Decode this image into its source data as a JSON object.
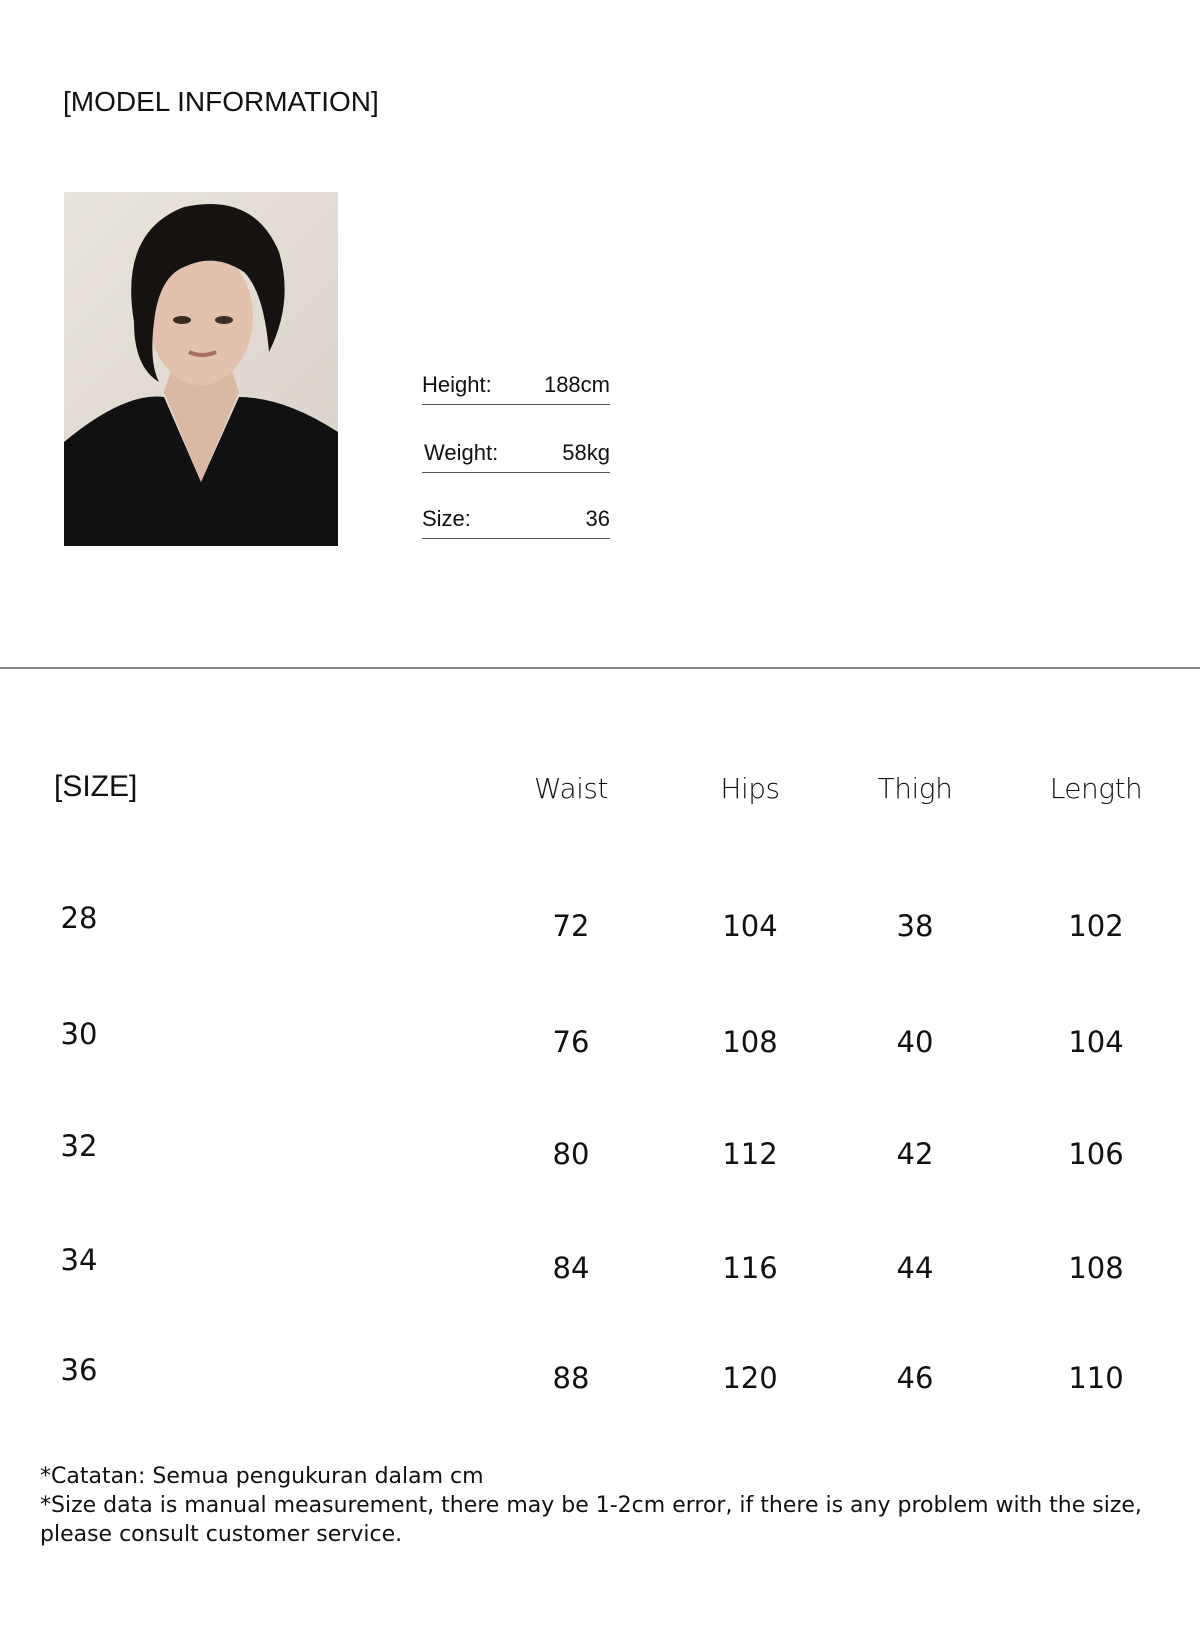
{
  "model": {
    "title": "[MODEL INFORMATION]",
    "rows": [
      {
        "label": "Height:",
        "value": "188cm"
      },
      {
        "label": "Weight:",
        "value": "58kg"
      },
      {
        "label": "Size:",
        "value": "36"
      }
    ]
  },
  "size_table": {
    "title": "[SIZE]",
    "headers": [
      "Waist",
      "Hips",
      "Thigh",
      "Length"
    ],
    "rows": [
      {
        "size": "28",
        "values": [
          "72",
          "104",
          "38",
          "102"
        ]
      },
      {
        "size": "30",
        "values": [
          "76",
          "108",
          "40",
          "104"
        ]
      },
      {
        "size": "32",
        "values": [
          "80",
          "112",
          "42",
          "106"
        ]
      },
      {
        "size": "34",
        "values": [
          "84",
          "116",
          "44",
          "108"
        ]
      },
      {
        "size": "36",
        "values": [
          "88",
          "120",
          "46",
          "110"
        ]
      }
    ]
  },
  "notes": [
    "*Catatan: Semua pengukuran dalam cm",
    "*Size data is manual measurement, there may be 1-2cm error, if there is any problem with  the size,",
    "please consult customer service."
  ]
}
